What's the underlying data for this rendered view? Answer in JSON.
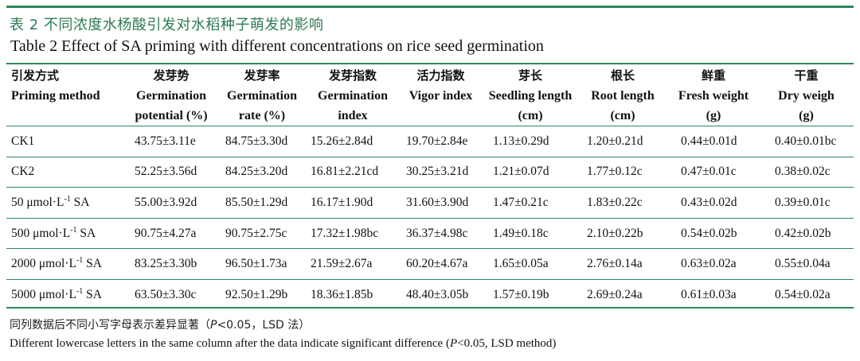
{
  "title": {
    "cn": "表 2   不同浓度水杨酸引发对水稻种子萌发的影响",
    "en": "Table 2    Effect of SA priming with different concentrations on rice seed germination"
  },
  "colors": {
    "rule": "#2b8a5a",
    "title_cn": "#2d7a52"
  },
  "table": {
    "headers": [
      {
        "cn": "引发方式",
        "en1": "Priming method",
        "en2": ""
      },
      {
        "cn": "发芽势",
        "en1": "Germination",
        "en2": "potential (%)"
      },
      {
        "cn": "发芽率",
        "en1": "Germination",
        "en2": "rate (%)"
      },
      {
        "cn": "发芽指数",
        "en1": "Germination",
        "en2": "index"
      },
      {
        "cn": "活力指数",
        "en1": "Vigor index",
        "en2": ""
      },
      {
        "cn": "芽长",
        "en1": "Seedling length",
        "en2": "(cm)"
      },
      {
        "cn": "根长",
        "en1": "Root length",
        "en2": "(cm)"
      },
      {
        "cn": "鲜重",
        "en1": "Fresh weight",
        "en2": "(g)"
      },
      {
        "cn": "干重",
        "en1": "Dry weigh",
        "en2": "(g)"
      }
    ],
    "rows": [
      {
        "method": "CK1",
        "method_sup": "",
        "method_suffix": "",
        "values": [
          "43.75±3.11e",
          "84.75±3.30d",
          "15.26±2.84d",
          "19.70±2.84e",
          "1.13±0.29d",
          "1.20±0.21d",
          "0.44±0.01d",
          "0.40±0.01bc"
        ]
      },
      {
        "method": "CK2",
        "method_sup": "",
        "method_suffix": "",
        "values": [
          "52.25±3.56d",
          "84.25±3.20d",
          "16.81±2.21cd",
          "30.25±3.21d",
          "1.21±0.07d",
          "1.77±0.12c",
          "0.47±0.01c",
          "0.38±0.02c"
        ]
      },
      {
        "method": "50 μmol·L",
        "method_sup": "-1",
        "method_suffix": " SA",
        "values": [
          "55.00±3.92d",
          "85.50±1.29d",
          "16.17±1.90d",
          "31.60±3.90d",
          "1.47±0.21c",
          "1.83±0.22c",
          "0.43±0.02d",
          "0.39±0.01c"
        ]
      },
      {
        "method": "500 μmol·L",
        "method_sup": "-1",
        "method_suffix": " SA",
        "values": [
          "90.75±4.27a",
          "90.75±2.75c",
          "17.32±1.98bc",
          "36.37±4.98c",
          "1.49±0.18c",
          "2.10±0.22b",
          "0.54±0.02b",
          "0.42±0.02b"
        ]
      },
      {
        "method": "2000 μmol·L",
        "method_sup": "-1",
        "method_suffix": " SA",
        "values": [
          "83.25±3.30b",
          "96.50±1.73a",
          "21.59±2.67a",
          "60.20±4.67a",
          "1.65±0.05a",
          "2.76±0.14a",
          "0.63±0.02a",
          "0.55±0.04a"
        ]
      },
      {
        "method": "5000 μmol·L",
        "method_sup": "-1",
        "method_suffix": " SA",
        "values": [
          "63.50±3.30c",
          "92.50±1.29b",
          "18.36±1.85b",
          "48.40±3.05b",
          "1.57±0.19b",
          "2.69±0.24a",
          "0.61±0.03a",
          "0.54±0.02a"
        ]
      }
    ]
  },
  "note": {
    "cn_pre": "同列数据后不同小写字母表示差异显著（",
    "cn_p": "P",
    "cn_post": "<0.05，LSD 法）",
    "en_pre": "Different lowercase letters in the same column after the data indicate significant difference (",
    "en_p": "P",
    "en_post": "<0.05, LSD method)"
  }
}
